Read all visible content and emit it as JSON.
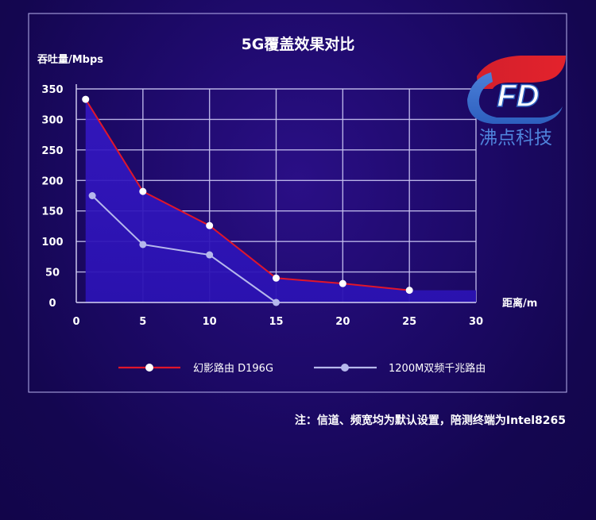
{
  "chart_data": {
    "type": "line",
    "title": "5G覆盖效果对比",
    "ylabel": "吞吐量/Mbps",
    "xlabel": "距离/m",
    "xlim": [
      0,
      30
    ],
    "ylim": [
      0,
      350
    ],
    "xticks": [
      0,
      5,
      10,
      15,
      20,
      25,
      30
    ],
    "yticks": [
      0,
      50,
      100,
      150,
      200,
      250,
      300,
      350
    ],
    "grid": true,
    "legend_position": "bottom",
    "series": [
      {
        "name": "幻影路由 D196G",
        "color": "#e0162b",
        "marker_color": "#ffffff",
        "x": [
          0.7,
          5,
          10,
          15,
          20,
          25
        ],
        "y": [
          333,
          182,
          126,
          40,
          31,
          20
        ]
      },
      {
        "name": "1200M双频千兆路由",
        "color": "#b6b8ec",
        "marker_color": "#b6b8ec",
        "x": [
          1.2,
          5,
          10,
          15
        ],
        "y": [
          175,
          95,
          78,
          0
        ]
      }
    ]
  },
  "logo": {
    "text": "FD",
    "company": "沸点科技"
  },
  "footnote": "注：信道、频宽均为默认设置，陪测终端为Intel8265"
}
